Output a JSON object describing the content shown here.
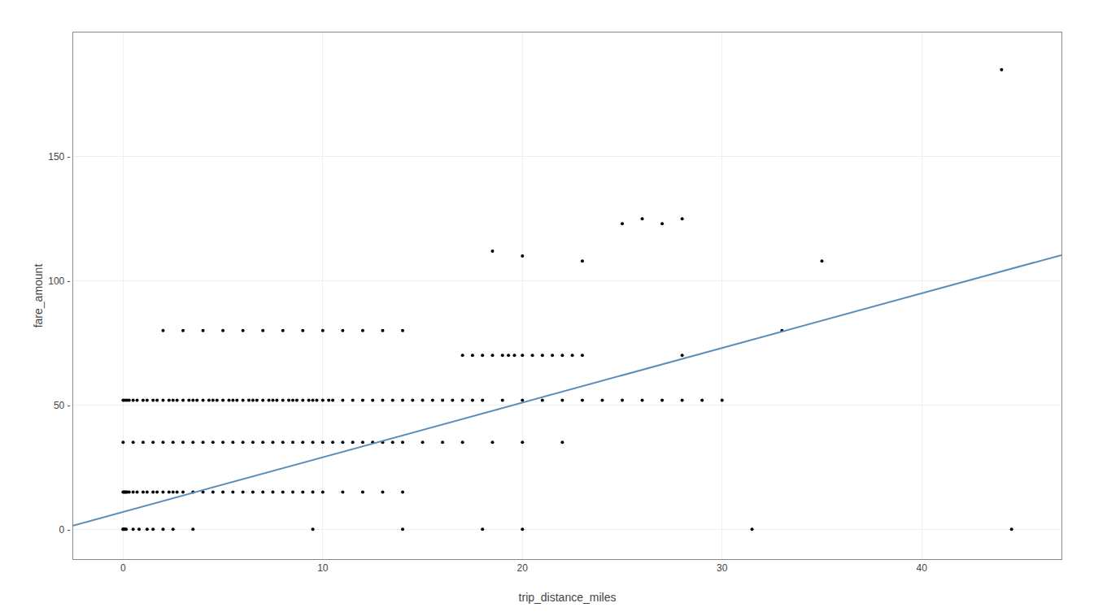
{
  "chart_data": {
    "type": "scatter",
    "xlabel": "trip_distance_miles",
    "ylabel": "fare_amount",
    "xlim": [
      -2.5,
      47
    ],
    "ylim": [
      -12,
      200
    ],
    "xticks": [
      0,
      10,
      20,
      30,
      40
    ],
    "yticks": [
      {
        "value": 0,
        "label": "0 -"
      },
      {
        "value": 50,
        "label": "50 -"
      },
      {
        "value": 100,
        "label": "100 -"
      },
      {
        "value": 150,
        "label": "150 -"
      }
    ],
    "grid": true,
    "series": [
      {
        "type": "scatter",
        "color": "black",
        "marker": "circle",
        "x": [
          0.0,
          0.0,
          0.05,
          0.1,
          0.15,
          0.5,
          0.8,
          1.2,
          1.5,
          2.0,
          2.5,
          3.5,
          9.5,
          14.0,
          18.0,
          20.0,
          31.5,
          44.5,
          0.0,
          0.05,
          0.1,
          0.15,
          0.2,
          0.3,
          0.5,
          0.7,
          1.0,
          1.2,
          1.5,
          1.7,
          2.0,
          2.3,
          2.5,
          2.7,
          3.0,
          3.5,
          4.0,
          4.5,
          5.0,
          5.5,
          6.0,
          6.5,
          7.0,
          7.5,
          8.0,
          8.5,
          9.0,
          9.5,
          10.0,
          11.0,
          12.0,
          13.0,
          14.0,
          0.0,
          0.5,
          1.0,
          1.5,
          2.0,
          2.5,
          3.0,
          3.5,
          4.0,
          4.5,
          5.0,
          5.5,
          6.0,
          6.5,
          7.0,
          7.5,
          8.0,
          8.5,
          9.0,
          9.5,
          10.0,
          10.5,
          11.0,
          11.5,
          12.0,
          12.5,
          13.0,
          13.5,
          14.0,
          15.0,
          16.0,
          17.0,
          18.5,
          20.0,
          22.0,
          0.0,
          0.1,
          0.2,
          0.3,
          0.5,
          0.7,
          1.0,
          1.2,
          1.5,
          1.7,
          2.0,
          2.3,
          2.5,
          2.7,
          3.0,
          3.3,
          3.5,
          3.7,
          4.0,
          4.3,
          4.5,
          4.7,
          5.0,
          5.3,
          5.5,
          5.7,
          6.0,
          6.3,
          6.5,
          6.7,
          7.0,
          7.3,
          7.5,
          7.7,
          8.0,
          8.3,
          8.5,
          8.7,
          9.0,
          9.3,
          9.5,
          9.7,
          10.0,
          10.3,
          10.5,
          11.0,
          11.5,
          12.0,
          12.5,
          13.0,
          13.5,
          14.0,
          14.5,
          15.0,
          15.5,
          16.0,
          16.5,
          17.0,
          17.5,
          18.0,
          19.0,
          20.0,
          21.0,
          22.0,
          23.0,
          24.0,
          25.0,
          26.0,
          27.0,
          28.0,
          29.0,
          30.0,
          17.0,
          17.5,
          18.0,
          18.5,
          19.0,
          19.3,
          19.6,
          20.0,
          20.5,
          21.0,
          21.5,
          22.0,
          22.5,
          23.0,
          28.0,
          2.0,
          3.0,
          4.0,
          5.0,
          6.0,
          7.0,
          8.0,
          9.0,
          10.0,
          11.0,
          12.0,
          13.0,
          14.0,
          33.0,
          18.5,
          20.0,
          23.0,
          25.0,
          26.0,
          27.0,
          28.0,
          35.0,
          44.0
        ],
        "values": [
          0.0,
          0.0,
          0.0,
          0.0,
          0.0,
          0.0,
          0.0,
          0.0,
          0.0,
          0.0,
          0.0,
          0.0,
          0.0,
          0.0,
          0.0,
          0.0,
          0.0,
          0.0,
          15.0,
          15.0,
          15.0,
          15.0,
          15.0,
          15.0,
          15.0,
          15.0,
          15.0,
          15.0,
          15.0,
          15.0,
          15.0,
          15.0,
          15.0,
          15.0,
          15.0,
          15.0,
          15.0,
          15.0,
          15.0,
          15.0,
          15.0,
          15.0,
          15.0,
          15.0,
          15.0,
          15.0,
          15.0,
          15.0,
          15.0,
          15.0,
          15.0,
          15.0,
          15.0,
          35.0,
          35.0,
          35.0,
          35.0,
          35.0,
          35.0,
          35.0,
          35.0,
          35.0,
          35.0,
          35.0,
          35.0,
          35.0,
          35.0,
          35.0,
          35.0,
          35.0,
          35.0,
          35.0,
          35.0,
          35.0,
          35.0,
          35.0,
          35.0,
          35.0,
          35.0,
          35.0,
          35.0,
          35.0,
          35.0,
          35.0,
          35.0,
          35.0,
          35.0,
          35.0,
          52.0,
          52.0,
          52.0,
          52.0,
          52.0,
          52.0,
          52.0,
          52.0,
          52.0,
          52.0,
          52.0,
          52.0,
          52.0,
          52.0,
          52.0,
          52.0,
          52.0,
          52.0,
          52.0,
          52.0,
          52.0,
          52.0,
          52.0,
          52.0,
          52.0,
          52.0,
          52.0,
          52.0,
          52.0,
          52.0,
          52.0,
          52.0,
          52.0,
          52.0,
          52.0,
          52.0,
          52.0,
          52.0,
          52.0,
          52.0,
          52.0,
          52.0,
          52.0,
          52.0,
          52.0,
          52.0,
          52.0,
          52.0,
          52.0,
          52.0,
          52.0,
          52.0,
          52.0,
          52.0,
          52.0,
          52.0,
          52.0,
          52.0,
          52.0,
          52.0,
          52.0,
          52.0,
          52.0,
          52.0,
          52.0,
          52.0,
          52.0,
          52.0,
          52.0,
          52.0,
          52.0,
          52.0,
          70.0,
          70.0,
          70.0,
          70.0,
          70.0,
          70.0,
          70.0,
          70.0,
          70.0,
          70.0,
          70.0,
          70.0,
          70.0,
          70.0,
          70.0,
          80.0,
          80.0,
          80.0,
          80.0,
          80.0,
          80.0,
          80.0,
          80.0,
          80.0,
          80.0,
          80.0,
          80.0,
          80.0,
          80.0,
          112.0,
          110.0,
          108.0,
          123.0,
          125.0,
          123.0,
          125.0,
          108.0,
          185.0
        ]
      },
      {
        "type": "line",
        "color": "#5b8db8",
        "line_style": "solid",
        "x": [
          -2.5,
          47
        ],
        "values": [
          1.5,
          110.4
        ]
      }
    ]
  }
}
